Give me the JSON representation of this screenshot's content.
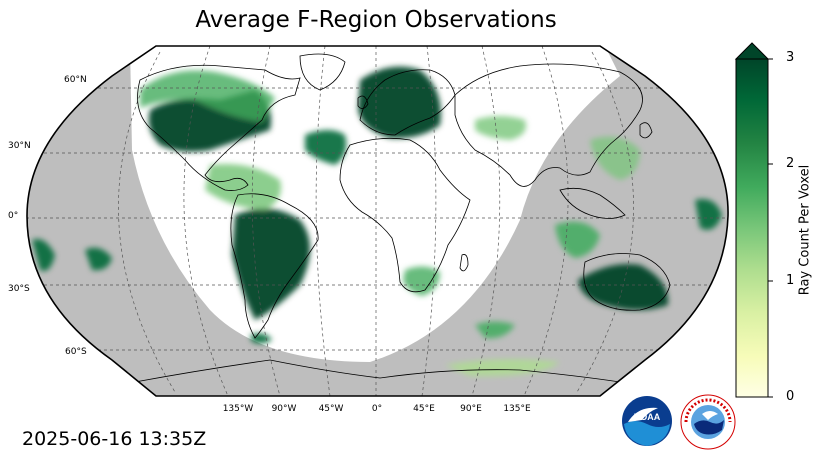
{
  "title": "Average F-Region Observations",
  "timestamp": "2025-06-16 13:35Z",
  "colorbar": {
    "label": "Ray Count Per Voxel",
    "ticks": [
      "0",
      "1",
      "2",
      "3"
    ],
    "colors": [
      "#ffffe5",
      "#f7fcb9",
      "#d9f0a3",
      "#addd8e",
      "#78c679",
      "#41ab5d",
      "#238443",
      "#006837",
      "#004529"
    ],
    "extend": "max"
  },
  "map": {
    "projection": "Robinson",
    "night_color": "#bebebe",
    "lat_labels": [
      "60°N",
      "30°N",
      "0°",
      "30°S",
      "60°S"
    ],
    "lon_labels": [
      "135°W",
      "90°W",
      "45°W",
      "0°",
      "45°E",
      "90°E",
      "135°E"
    ]
  },
  "logos": {
    "noaa": "NOAA",
    "nws_text": "NATIONAL WEATHER SERVICE"
  }
}
